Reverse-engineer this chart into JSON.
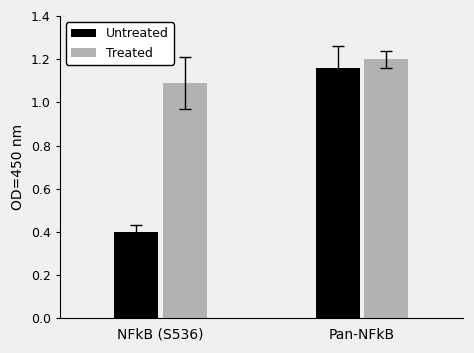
{
  "groups": [
    "NFkB (S536)",
    "Pan-NFkB"
  ],
  "untreated_values": [
    0.4,
    1.16
  ],
  "treated_values": [
    1.09,
    1.2
  ],
  "untreated_errors": [
    0.03,
    0.1
  ],
  "treated_errors": [
    0.12,
    0.04
  ],
  "untreated_color": "#000000",
  "treated_color": "#b2b2b2",
  "untreated_label": "Untreated",
  "treated_label": "Treated",
  "ylabel": "OD=450 nm",
  "ylim": [
    0.0,
    1.4
  ],
  "yticks": [
    0.0,
    0.2,
    0.4,
    0.6,
    0.8,
    1.0,
    1.2,
    1.4
  ],
  "bar_width": 0.22,
  "group_centers": [
    0.5,
    1.5
  ],
  "xlim": [
    0.0,
    2.0
  ],
  "capsize": 4,
  "legend_fontsize": 9,
  "axis_fontsize": 10,
  "tick_fontsize": 9
}
